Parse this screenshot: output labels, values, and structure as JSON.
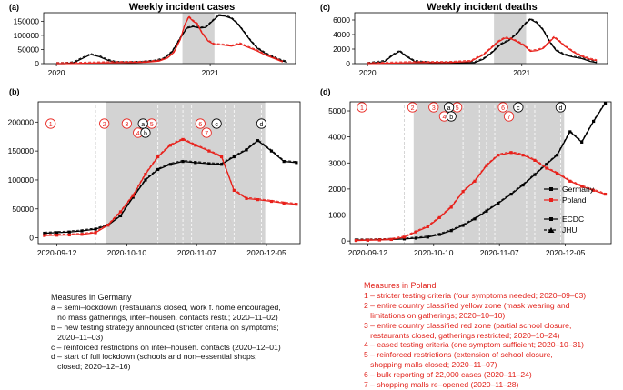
{
  "colors": {
    "germany": "#000000",
    "poland": "#e8201a",
    "shade": "#d3d3d3",
    "dash": "#ffffff"
  },
  "date_ticks": [
    "2020-09-12",
    "2020-10-10",
    "2020-11-07",
    "2020-12-05"
  ],
  "overview_ticks": [
    "2020",
    "2021"
  ],
  "germany_measures": {
    "title": "Measures in Germany",
    "items": [
      "a – semi–lockdown (restaurants closed, work f. home encouraged,",
      "   no mass gatherings, inter–househ. contacts restr.; 2020–11–02)",
      "b – new testing strategy announced (stricter criteria on symptoms;",
      "   2020–11–03)",
      "c – reinforced restrictions on inter–househ. contacts (2020–12–01)",
      "d – start of full lockdown (schools and non–essential shops;",
      "   closed; 2020–12–16)"
    ]
  },
  "poland_measures": {
    "title": "Measures in Poland",
    "items": [
      "1 – stricter testing criteria (four symptoms needed; 2020–09–03)",
      "2 – entire country classified yellow zone (mask wearing and",
      "   limitations on gatherings; 2020–10–10)",
      "3 – entire country classified red zone (partial school closure,",
      "   restaurants closed, gatherings restricted; 2020–10–24)",
      "4 – eased testing criteria (one symptom sufficient; 2020–10–31)",
      "5 – reinforced restrictions (extension of school closure,",
      "   shopping malls closed; 2020–11–07)",
      "6 – bulk reporting of 22,000 cases (2020–11–24)",
      "7 – shopping malls re–opened (2020–11–28)"
    ]
  },
  "chart_data": [
    {
      "panel": "(a)",
      "type": "line",
      "title": "Weekly incident cases",
      "x_ticks": [
        "2020",
        "2021"
      ],
      "ylim": [
        0,
        180000
      ],
      "y_ticks": [
        "0",
        "50000",
        "100000",
        "150000"
      ],
      "series": [
        {
          "name": "Germany",
          "color": "#000000",
          "points": [
            [
              0.06,
              0
            ],
            [
              0.1,
              0
            ],
            [
              0.14,
              3000
            ],
            [
              0.18,
              18000
            ],
            [
              0.22,
              32000
            ],
            [
              0.26,
              25000
            ],
            [
              0.3,
              12000
            ],
            [
              0.34,
              4000
            ],
            [
              0.4,
              3000
            ],
            [
              0.46,
              5000
            ],
            [
              0.52,
              9000
            ],
            [
              0.56,
              16000
            ],
            [
              0.6,
              40000
            ],
            [
              0.64,
              90000
            ],
            [
              0.67,
              125000
            ],
            [
              0.7,
              131000
            ],
            [
              0.73,
              126000
            ],
            [
              0.76,
              128000
            ],
            [
              0.79,
              150000
            ],
            [
              0.82,
              170000
            ],
            [
              0.85,
              168000
            ],
            [
              0.88,
              160000
            ],
            [
              0.91,
              140000
            ],
            [
              0.94,
              110000
            ],
            [
              0.97,
              80000
            ],
            [
              1.0,
              55000
            ],
            [
              1.04,
              35000
            ],
            [
              1.07,
              25000
            ],
            [
              1.1,
              14000
            ],
            [
              1.14,
              5000
            ]
          ]
        },
        {
          "name": "Poland",
          "color": "#e8201a",
          "points": [
            [
              0.06,
              0
            ],
            [
              0.14,
              500
            ],
            [
              0.22,
              2000
            ],
            [
              0.3,
              3000
            ],
            [
              0.4,
              4000
            ],
            [
              0.48,
              5000
            ],
            [
              0.54,
              9000
            ],
            [
              0.58,
              20000
            ],
            [
              0.61,
              40000
            ],
            [
              0.64,
              85000
            ],
            [
              0.66,
              135000
            ],
            [
              0.68,
              165000
            ],
            [
              0.7,
              150000
            ],
            [
              0.72,
              140000
            ],
            [
              0.74,
              110000
            ],
            [
              0.77,
              80000
            ],
            [
              0.8,
              67000
            ],
            [
              0.84,
              66000
            ],
            [
              0.88,
              62000
            ],
            [
              0.92,
              70000
            ],
            [
              0.95,
              60000
            ],
            [
              1.0,
              45000
            ],
            [
              1.04,
              30000
            ],
            [
              1.08,
              18000
            ],
            [
              1.12,
              6000
            ]
          ]
        }
      ]
    },
    {
      "panel": "(b)",
      "type": "line",
      "x_ticks": [
        "2020-09-12",
        "2020-10-10",
        "2020-11-07",
        "2020-12-05"
      ],
      "ylim": [
        -10000,
        235000
      ],
      "y_ticks": [
        "0",
        "50000",
        "100000",
        "150000",
        "200000"
      ],
      "series": [
        {
          "name": "Germany",
          "color": "#000000",
          "points": [
            [
              -0.05,
              8000
            ],
            [
              0.05,
              9000
            ],
            [
              0.15,
              10000
            ],
            [
              0.25,
              12000
            ],
            [
              0.36,
              15000
            ],
            [
              0.46,
              22000
            ],
            [
              0.56,
              38000
            ],
            [
              0.66,
              70000
            ],
            [
              0.76,
              100000
            ],
            [
              0.86,
              118000
            ],
            [
              0.96,
              127000
            ],
            [
              1.06,
              132000
            ],
            [
              1.16,
              130000
            ],
            [
              1.27,
              128000
            ],
            [
              1.37,
              127000
            ],
            [
              1.47,
              140000
            ],
            [
              1.57,
              152000
            ],
            [
              1.66,
              168000
            ],
            [
              1.77,
              150000
            ],
            [
              1.87,
              132000
            ],
            [
              1.97,
              130000
            ]
          ]
        },
        {
          "name": "Poland",
          "color": "#e8201a",
          "points": [
            [
              -0.05,
              4000
            ],
            [
              0.05,
              4500
            ],
            [
              0.15,
              5000
            ],
            [
              0.25,
              6000
            ],
            [
              0.36,
              9000
            ],
            [
              0.46,
              22000
            ],
            [
              0.56,
              45000
            ],
            [
              0.66,
              73000
            ],
            [
              0.76,
              110000
            ],
            [
              0.86,
              140000
            ],
            [
              0.96,
              160000
            ],
            [
              1.06,
              170000
            ],
            [
              1.16,
              160000
            ],
            [
              1.27,
              150000
            ],
            [
              1.37,
              140000
            ],
            [
              1.47,
              82000
            ],
            [
              1.57,
              68000
            ],
            [
              1.66,
              66000
            ],
            [
              1.77,
              63000
            ],
            [
              1.87,
              60000
            ],
            [
              1.97,
              58000
            ]
          ]
        }
      ],
      "annotations": [
        "1",
        "2",
        "3",
        "4",
        "5",
        "6",
        "7",
        "a",
        "b",
        "c",
        "d"
      ]
    },
    {
      "panel": "(c)",
      "type": "line",
      "title": "Weekly incident deaths",
      "x_ticks": [
        "2020",
        "2021"
      ],
      "ylim": [
        0,
        7000
      ],
      "y_ticks": [
        "0",
        "2000",
        "4000",
        "6000"
      ],
      "series": [
        {
          "name": "Germany",
          "color": "#000000",
          "points": [
            [
              0.06,
              0
            ],
            [
              0.14,
              300
            ],
            [
              0.18,
              1200
            ],
            [
              0.21,
              1700
            ],
            [
              0.24,
              1000
            ],
            [
              0.28,
              300
            ],
            [
              0.36,
              50
            ],
            [
              0.48,
              80
            ],
            [
              0.56,
              150
            ],
            [
              0.6,
              600
            ],
            [
              0.64,
              1500
            ],
            [
              0.68,
              2600
            ],
            [
              0.72,
              3200
            ],
            [
              0.76,
              4200
            ],
            [
              0.79,
              5300
            ],
            [
              0.82,
              6100
            ],
            [
              0.85,
              5600
            ],
            [
              0.88,
              4600
            ],
            [
              0.91,
              3000
            ],
            [
              0.94,
              1800
            ],
            [
              0.98,
              1200
            ],
            [
              1.02,
              900
            ],
            [
              1.06,
              700
            ],
            [
              1.1,
              300
            ],
            [
              1.13,
              150
            ]
          ]
        },
        {
          "name": "Poland",
          "color": "#e8201a",
          "points": [
            [
              0.06,
              0
            ],
            [
              0.18,
              80
            ],
            [
              0.3,
              150
            ],
            [
              0.44,
              150
            ],
            [
              0.54,
              300
            ],
            [
              0.6,
              1200
            ],
            [
              0.64,
              2200
            ],
            [
              0.67,
              3000
            ],
            [
              0.7,
              3500
            ],
            [
              0.73,
              3400
            ],
            [
              0.76,
              3000
            ],
            [
              0.79,
              2500
            ],
            [
              0.82,
              1700
            ],
            [
              0.85,
              1800
            ],
            [
              0.88,
              2100
            ],
            [
              0.91,
              3000
            ],
            [
              0.93,
              3600
            ],
            [
              0.95,
              3200
            ],
            [
              0.98,
              2400
            ],
            [
              1.02,
              1600
            ],
            [
              1.06,
              1000
            ],
            [
              1.1,
              600
            ],
            [
              1.13,
              400
            ]
          ]
        }
      ]
    },
    {
      "panel": "(d)",
      "type": "line",
      "x_ticks": [
        "2020-09-12",
        "2020-10-10",
        "2020-11-07",
        "2020-12-05"
      ],
      "ylim": [
        -100,
        5350
      ],
      "y_ticks": [
        "0",
        "1000",
        "2000",
        "3000",
        "4000",
        "5000"
      ],
      "series": [
        {
          "name": "Germany",
          "color": "#000000",
          "points": [
            [
              -0.05,
              40
            ],
            [
              0.05,
              40
            ],
            [
              0.15,
              50
            ],
            [
              0.25,
              60
            ],
            [
              0.36,
              80
            ],
            [
              0.46,
              110
            ],
            [
              0.56,
              150
            ],
            [
              0.66,
              250
            ],
            [
              0.76,
              400
            ],
            [
              0.86,
              600
            ],
            [
              0.96,
              850
            ],
            [
              1.06,
              1150
            ],
            [
              1.16,
              1450
            ],
            [
              1.27,
              1800
            ],
            [
              1.37,
              2150
            ],
            [
              1.47,
              2550
            ],
            [
              1.57,
              2950
            ],
            [
              1.66,
              3300
            ],
            [
              1.77,
              4200
            ],
            [
              1.87,
              3800
            ],
            [
              1.97,
              4600
            ],
            [
              2.07,
              5300
            ]
          ]
        },
        {
          "name": "Poland",
          "color": "#e8201a",
          "points": [
            [
              -0.05,
              20
            ],
            [
              0.05,
              30
            ],
            [
              0.15,
              40
            ],
            [
              0.25,
              60
            ],
            [
              0.36,
              150
            ],
            [
              0.46,
              350
            ],
            [
              0.56,
              550
            ],
            [
              0.66,
              900
            ],
            [
              0.76,
              1300
            ],
            [
              0.86,
              1900
            ],
            [
              0.96,
              2300
            ],
            [
              1.06,
              2900
            ],
            [
              1.16,
              3300
            ],
            [
              1.27,
              3400
            ],
            [
              1.37,
              3300
            ],
            [
              1.47,
              3100
            ],
            [
              1.57,
              2800
            ],
            [
              1.66,
              2600
            ],
            [
              1.77,
              2300
            ],
            [
              1.87,
              2100
            ],
            [
              1.97,
              1950
            ],
            [
              2.07,
              1800
            ]
          ]
        }
      ],
      "legend": [
        {
          "label": "Germany",
          "marker": "square",
          "color": "#000000"
        },
        {
          "label": "Poland",
          "marker": "square",
          "color": "#e8201a"
        },
        {
          "label": "ECDC",
          "marker": "square",
          "color": "#000000"
        },
        {
          "label": "JHU",
          "marker": "triangle",
          "color": "#000000"
        }
      ],
      "annotations": [
        "1",
        "2",
        "3",
        "4",
        "5",
        "6",
        "7",
        "a",
        "b",
        "c",
        "d"
      ]
    }
  ]
}
